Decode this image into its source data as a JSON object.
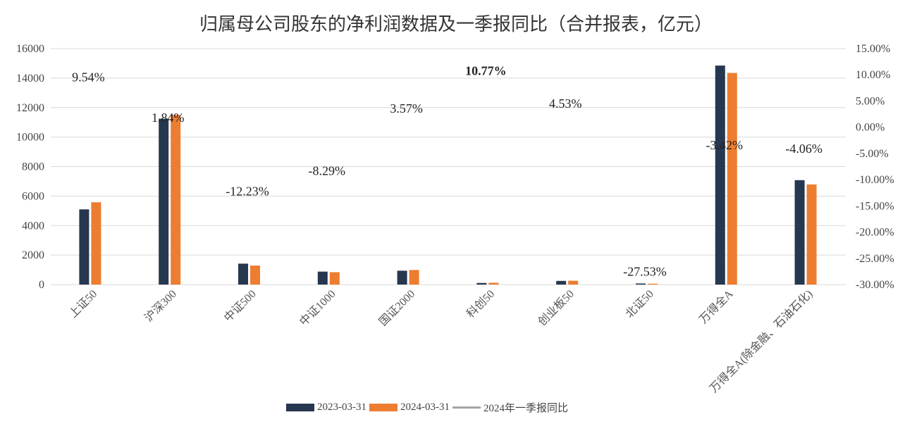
{
  "chart_data": {
    "type": "bar",
    "title": "归属母公司股东的净利润数据及一季报同比（合并报表，亿元）",
    "categories": [
      "上证50",
      "沪深300",
      "中证500",
      "中证1000",
      "国证2000",
      "科创50",
      "创业板50",
      "北证50",
      "万得全A",
      "万得全A(除金融、石油石化)"
    ],
    "series": [
      {
        "name": "2023-03-31",
        "color": "#263750",
        "axis": "left",
        "values": [
          5100,
          11250,
          1420,
          880,
          940,
          110,
          250,
          75,
          14850,
          7080
        ]
      },
      {
        "name": "2024-03-31",
        "color": "#ed7d31",
        "axis": "left",
        "values": [
          5580,
          11500,
          1290,
          840,
          990,
          125,
          262,
          58,
          14350,
          6790
        ]
      },
      {
        "name": "2024年一季报同比",
        "color": "#a5a5a5",
        "axis": "right",
        "kind": "line",
        "values": [
          9.54,
          1.84,
          -12.23,
          -8.29,
          3.57,
          10.77,
          4.53,
          -27.53,
          -3.42,
          -4.06
        ],
        "labels": [
          "9.54%",
          "1.84%",
          "-12.23%",
          "-8.29%",
          "3.57%",
          "10.77%",
          "4.53%",
          "-27.53%",
          "-3.42%",
          "-4.06%"
        ],
        "highlight_index": 5,
        "highlight_color": "#e00000"
      }
    ],
    "y_left": {
      "min": 0,
      "max": 16000,
      "ticks": [
        0,
        2000,
        4000,
        6000,
        8000,
        10000,
        12000,
        14000,
        16000
      ]
    },
    "y_right": {
      "min": -30,
      "max": 15,
      "ticks": [
        "-30.00%",
        "-25.00%",
        "-20.00%",
        "-15.00%",
        "-10.00%",
        "-5.00%",
        "0.00%",
        "5.00%",
        "10.00%",
        "15.00%"
      ]
    },
    "grid": true,
    "legend_position": "bottom"
  }
}
